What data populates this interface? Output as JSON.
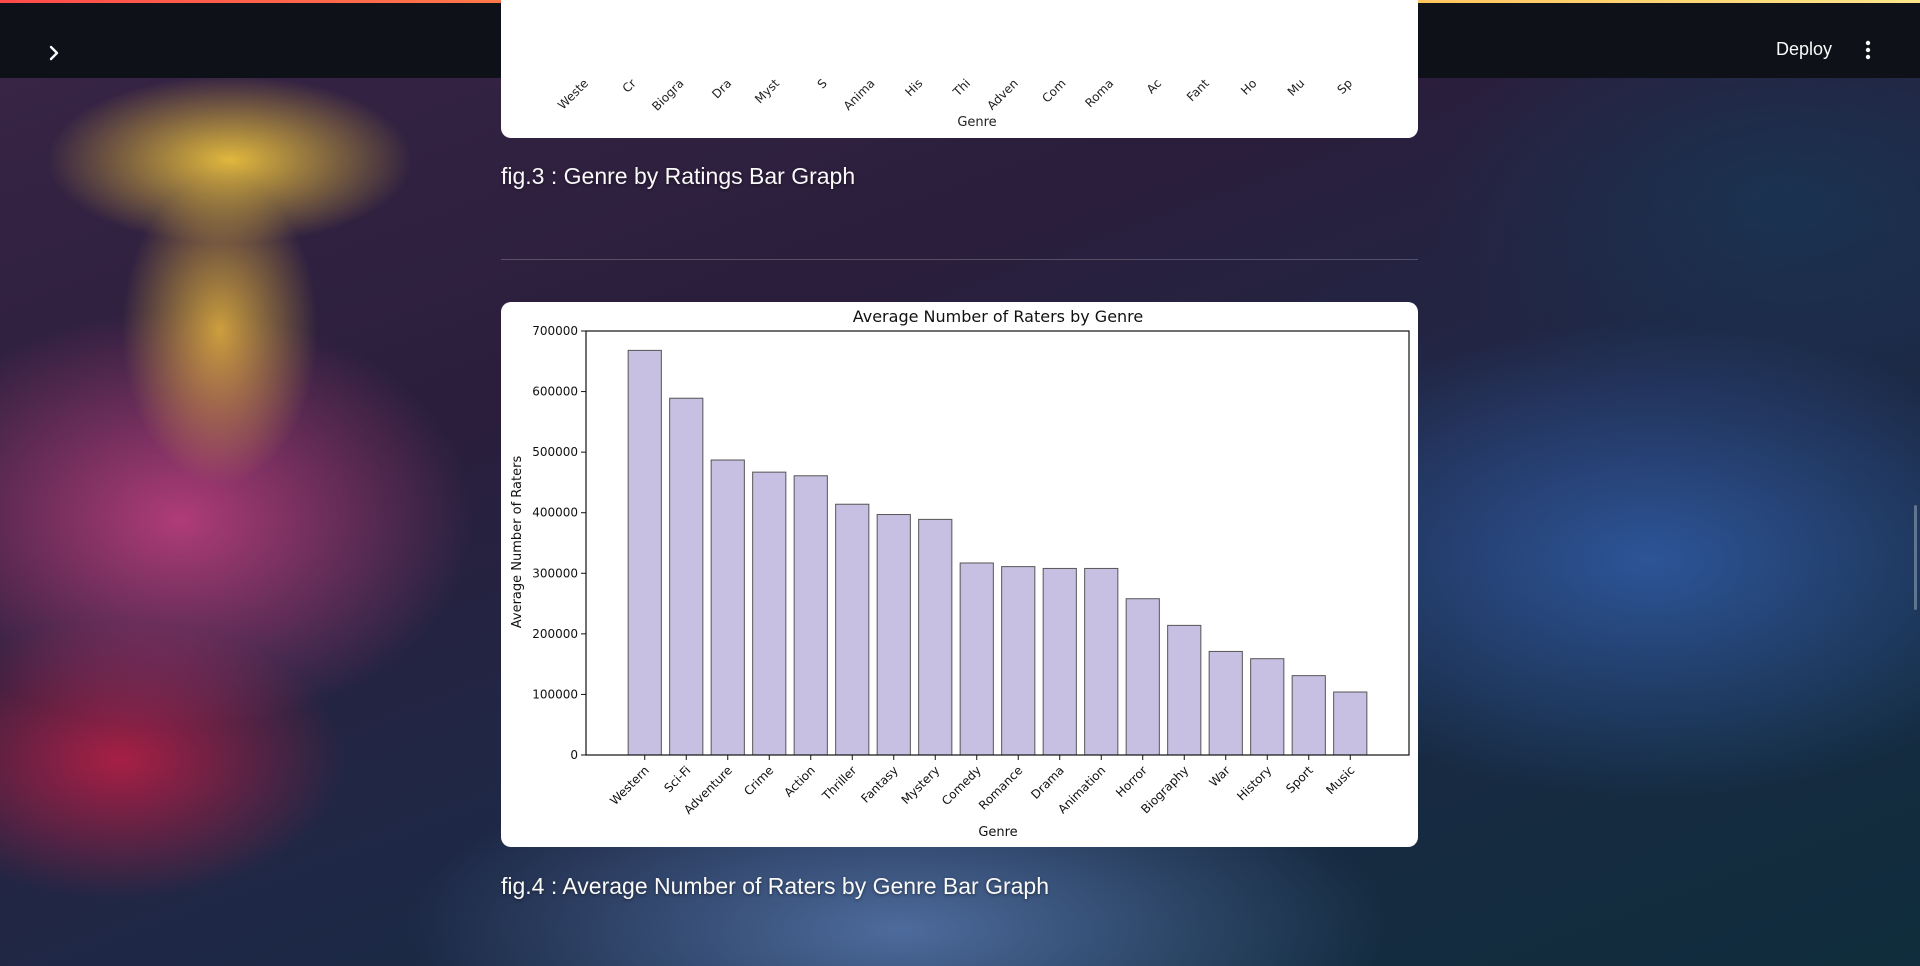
{
  "header": {
    "deploy_label": "Deploy",
    "expand_icon": "chevron-right-icon",
    "menu_icon": "vertical-ellipsis-icon"
  },
  "fig3": {
    "caption": "fig.3 : Genre by Ratings Bar Graph",
    "xlabel": "Genre",
    "visible_tick_labels": [
      "Weste",
      "Cr",
      "Biogra",
      "Dra",
      "Myst",
      "S",
      "Anima",
      "His",
      "Thi",
      "Adven",
      "Com",
      "Roma",
      "Ac",
      "Fant",
      "Ho",
      "Mu",
      "Sp"
    ]
  },
  "fig4": {
    "caption": "fig.4 : Average Number of Raters by Genre Bar Graph"
  },
  "chart_data": {
    "type": "bar",
    "title": "Average Number of Raters by Genre",
    "xlabel": "Genre",
    "ylabel": "Average Number of Raters",
    "ylim": [
      0,
      700000
    ],
    "yticks": [
      0,
      100000,
      200000,
      300000,
      400000,
      500000,
      600000,
      700000
    ],
    "categories": [
      "Western",
      "Sci-Fi",
      "Adventure",
      "Crime",
      "Action",
      "Thriller",
      "Fantasy",
      "Mystery",
      "Comedy",
      "Romance",
      "Drama",
      "Animation",
      "Horror",
      "Biography",
      "War",
      "History",
      "Sport",
      "Music"
    ],
    "values": [
      668000,
      589000,
      487000,
      467000,
      461000,
      414000,
      397000,
      389000,
      317000,
      311000,
      308000,
      308000,
      258000,
      214000,
      171000,
      159000,
      131000,
      104000
    ],
    "bar_color": "#c8c0e2",
    "edge_color": "#555555",
    "grid": false
  },
  "colors": {
    "header_bg": "#0e1117",
    "caption_text": "#fafafa",
    "accent": "#ff4b4b"
  }
}
